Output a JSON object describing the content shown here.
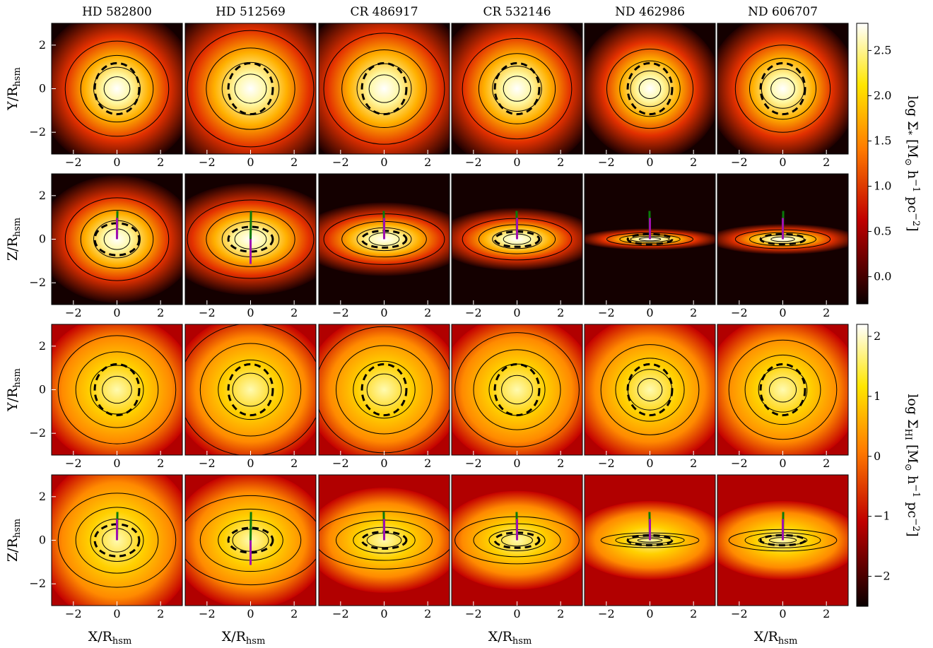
{
  "chart_data": {
    "type": "heatmap",
    "columns": [
      "HD 582800",
      "HD 512569",
      "CR 486917",
      "CR 532146",
      "ND 462986",
      "ND 606707"
    ],
    "rows": [
      {
        "map": "stars",
        "projection": "face-on",
        "ylabel_base": "Y/R",
        "xlabel_base": ""
      },
      {
        "map": "stars",
        "projection": "edge-on",
        "ylabel_base": "Z/R",
        "xlabel_base": ""
      },
      {
        "map": "HI",
        "projection": "face-on",
        "ylabel_base": "Y/R",
        "xlabel_base": ""
      },
      {
        "map": "HI",
        "projection": "edge-on",
        "ylabel_base": "Z/R",
        "xlabel_base": "X/R"
      }
    ],
    "axis_subscript": "hsm",
    "xlim": [
      -3,
      3
    ],
    "ylim": [
      -3,
      3
    ],
    "xticks": [
      "−2",
      "0",
      "2"
    ],
    "yticks": [
      "2",
      "0",
      "−2"
    ],
    "colorbars": [
      {
        "map": "stars",
        "label_prefix": "log Σ",
        "label_sub": "*",
        "label_unit": "[M",
        "label_unit2": "h",
        "label_unit3": "pc",
        "range": [
          -0.3,
          2.8
        ],
        "ticks": [
          "2.5",
          "2.0",
          "1.5",
          "1.0",
          "0.5",
          "0.0"
        ],
        "tick_values": [
          2.5,
          2.0,
          1.5,
          1.0,
          0.5,
          0.0
        ]
      },
      {
        "map": "HI",
        "label_prefix": "log Σ",
        "label_sub": "HI",
        "label_unit": "[M",
        "label_unit2": "h",
        "label_unit3": "pc",
        "range": [
          -2.5,
          2.2
        ],
        "ticks": [
          "2",
          "1",
          "0",
          "−1",
          "−2"
        ],
        "tick_values": [
          2,
          1,
          0,
          -1,
          -2
        ]
      }
    ],
    "colormap": "hot",
    "colors": {
      "contours": "#000000",
      "dashed_ellipse": "#000000",
      "vector_a": "#a010b0",
      "vector_b": "#0a7a0a"
    }
  }
}
